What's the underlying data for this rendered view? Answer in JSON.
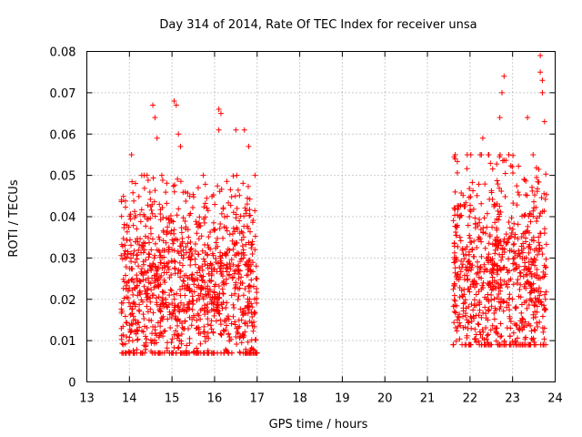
{
  "chart_data": {
    "type": "scatter",
    "title": "Day 314 of 2014, Rate Of TEC Index for receiver unsa",
    "xlabel": "GPS time / hours",
    "ylabel": "ROTI / TECUs",
    "xlim": [
      13,
      24
    ],
    "ylim": [
      0,
      0.08
    ],
    "xticks": [
      "13",
      "14",
      "15",
      "16",
      "17",
      "18",
      "19",
      "20",
      "21",
      "22",
      "23",
      "24"
    ],
    "yticks": [
      "0",
      "0.01",
      "0.02",
      "0.03",
      "0.04",
      "0.05",
      "0.06",
      "0.07",
      "0.08"
    ],
    "grid": true,
    "marker": "+",
    "color": "#ff0000",
    "series": [
      {
        "name": "ROTI",
        "x_start": 13.8,
        "x_end": 23.8,
        "gap": [
          17.0,
          21.6
        ],
        "segments": [
          {
            "x_range": [
              13.8,
              17.0
            ],
            "typical_range": [
              0.007,
              0.045
            ],
            "median": 0.022
          },
          {
            "x_range": [
              21.6,
              23.8
            ],
            "typical_range": [
              0.009,
              0.05
            ],
            "median": 0.025
          }
        ],
        "outliers": [
          {
            "x": 13.85,
            "y": 0.007
          },
          {
            "x": 14.05,
            "y": 0.055
          },
          {
            "x": 14.55,
            "y": 0.067
          },
          {
            "x": 14.6,
            "y": 0.064
          },
          {
            "x": 14.65,
            "y": 0.059
          },
          {
            "x": 15.05,
            "y": 0.068
          },
          {
            "x": 15.1,
            "y": 0.067
          },
          {
            "x": 15.15,
            "y": 0.06
          },
          {
            "x": 15.2,
            "y": 0.057
          },
          {
            "x": 16.1,
            "y": 0.066
          },
          {
            "x": 16.15,
            "y": 0.065
          },
          {
            "x": 16.1,
            "y": 0.061
          },
          {
            "x": 16.5,
            "y": 0.061
          },
          {
            "x": 16.7,
            "y": 0.061
          },
          {
            "x": 16.8,
            "y": 0.057
          },
          {
            "x": 16.9,
            "y": 0.008
          },
          {
            "x": 21.65,
            "y": 0.054
          },
          {
            "x": 22.3,
            "y": 0.059
          },
          {
            "x": 22.7,
            "y": 0.064
          },
          {
            "x": 22.8,
            "y": 0.074
          },
          {
            "x": 22.75,
            "y": 0.07
          },
          {
            "x": 23.35,
            "y": 0.064
          },
          {
            "x": 23.65,
            "y": 0.079
          },
          {
            "x": 23.65,
            "y": 0.075
          },
          {
            "x": 23.7,
            "y": 0.073
          },
          {
            "x": 23.7,
            "y": 0.07
          },
          {
            "x": 23.75,
            "y": 0.063
          },
          {
            "x": 23.75,
            "y": 0.013
          }
        ]
      }
    ]
  }
}
